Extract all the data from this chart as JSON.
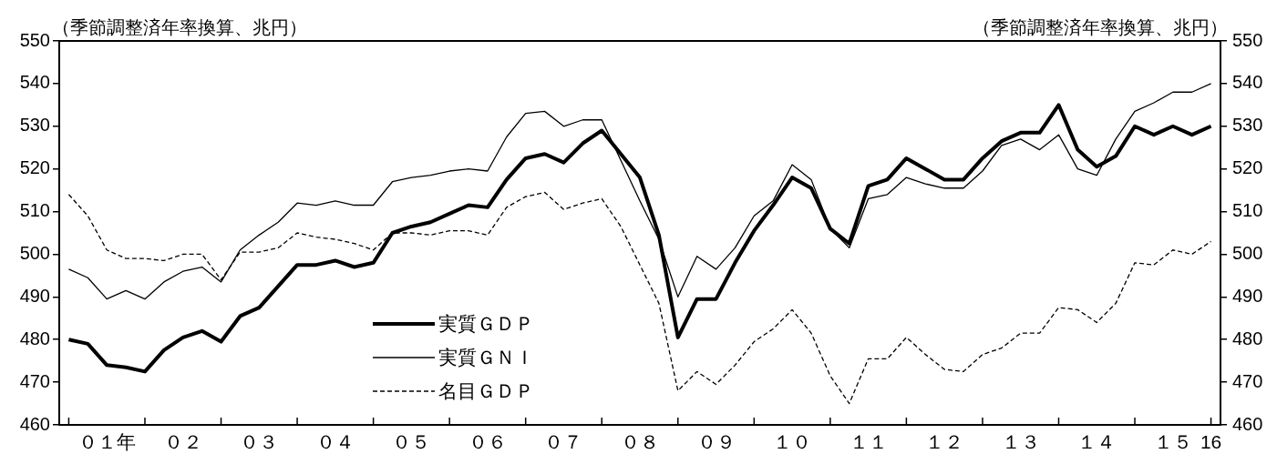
{
  "chart_data": {
    "type": "line",
    "ylabel": "（季節調整済年率換算、兆円）",
    "y2label": "（季節調整済年率換算、兆円）",
    "categories": [
      null,
      null,
      "０１年",
      null,
      null,
      null,
      "０２",
      null,
      null,
      null,
      "０３",
      null,
      null,
      null,
      "０４",
      null,
      null,
      null,
      "０５",
      null,
      null,
      null,
      "０６",
      null,
      null,
      null,
      "０７",
      null,
      null,
      null,
      "０８",
      null,
      null,
      null,
      "０９",
      null,
      null,
      null,
      "１０",
      null,
      null,
      null,
      "１１",
      null,
      null,
      null,
      "１２",
      null,
      null,
      null,
      "１３",
      null,
      null,
      null,
      "１４",
      null,
      null,
      null,
      "１５",
      null,
      "16"
    ],
    "series": [
      {
        "name": "実質ＧＤＰ",
        "color": "#000000",
        "line_style": "solid",
        "values": [
          480,
          479,
          474,
          473.5,
          472.5,
          477.5,
          480.5,
          482,
          479.5,
          485.5,
          487.5,
          492.5,
          497.5,
          497.5,
          498.5,
          497,
          498,
          505,
          506.5,
          507.5,
          509.5,
          511.5,
          511,
          517.5,
          522.5,
          523.5,
          521.5,
          526,
          529,
          523.5,
          518,
          504.5,
          480.5,
          489.5,
          489.5,
          498,
          505.5,
          511.5,
          518,
          515.5,
          506,
          502.5,
          516,
          517.5,
          522.5,
          520,
          517.5,
          517.5,
          522.5,
          526.5,
          528.5,
          528.5,
          535,
          524.5,
          520.5,
          523,
          530,
          528,
          530,
          528,
          530
        ]
      },
      {
        "name": "実質ＧＮＩ",
        "color": "#000000",
        "line_style": "solid",
        "values": [
          496.5,
          494.5,
          489.5,
          491.5,
          489.5,
          493.5,
          496,
          497,
          493.5,
          501,
          504.5,
          507.5,
          512,
          511.5,
          512.5,
          511.5,
          511.5,
          517,
          518,
          518.5,
          519.5,
          520,
          519.5,
          527.5,
          533,
          533.5,
          530,
          531.5,
          531.5,
          522,
          512.5,
          503.5,
          490,
          499.5,
          496.5,
          501.5,
          509,
          512.5,
          521,
          517.5,
          506,
          501.5,
          513,
          514,
          518,
          516.5,
          515.5,
          515.5,
          519.5,
          525.5,
          527,
          524.5,
          528,
          520,
          518.5,
          527,
          533.5,
          535.5,
          538,
          538,
          540
        ]
      },
      {
        "name": "名目ＧＤＰ",
        "color": "#000000",
        "line_style": "dashed",
        "values": [
          514,
          509,
          501,
          499,
          499,
          498.5,
          500,
          500,
          494,
          500.5,
          500.5,
          501.5,
          505,
          504,
          503.5,
          502.5,
          501,
          505,
          505,
          504.5,
          505.5,
          505.5,
          504.5,
          511,
          513.5,
          514.5,
          510.5,
          512,
          513,
          506.5,
          497.5,
          488.5,
          468,
          472.5,
          469.5,
          474,
          479.5,
          482.5,
          487,
          481.5,
          471.5,
          465,
          475.5,
          475.5,
          480.5,
          476.5,
          473,
          472.5,
          476.5,
          478,
          481.5,
          481.5,
          487.5,
          487,
          484,
          488.5,
          498,
          497.5,
          501,
          500,
          503
        ]
      }
    ],
    "ylim": [
      460,
      550
    ],
    "yticks": [
      460,
      470,
      480,
      490,
      500,
      510,
      520,
      530,
      540,
      550
    ],
    "y2lim": [
      460,
      550
    ],
    "y2ticks": [
      460,
      470,
      480,
      490,
      500,
      510,
      520,
      530,
      540,
      550
    ],
    "grid": false,
    "legend": "bottom left",
    "marker": "none"
  }
}
